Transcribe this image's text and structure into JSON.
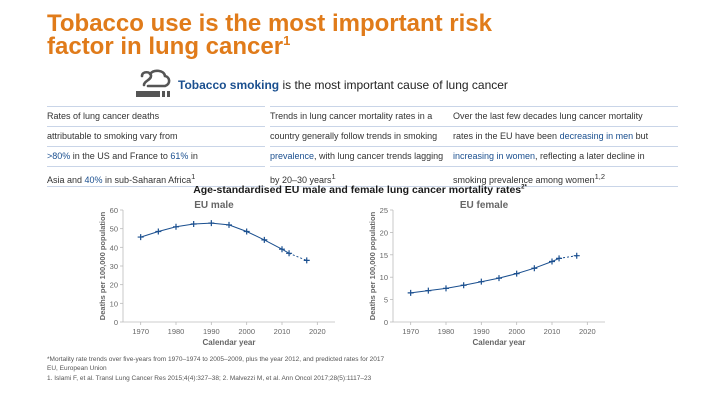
{
  "title": {
    "line1": "Tobacco use is the most important risk",
    "line2": "factor in lung cancer",
    "sup": "1"
  },
  "subtitle": {
    "highlight": "Tobacco smoking",
    "rest": " is the most important cause of lung cancer"
  },
  "columns": [
    {
      "rows": [
        [
          {
            "t": "Rates of lung cancer deaths"
          }
        ],
        [
          {
            "t": "attributable to smoking vary from"
          }
        ],
        [
          {
            "t": ">80%",
            "h": true
          },
          {
            "t": " in the US and France to "
          },
          {
            "t": "61%",
            "h": true
          },
          {
            "t": " in"
          }
        ],
        [
          {
            "t": "Asia and "
          },
          {
            "t": "40%",
            "h": true
          },
          {
            "t": " in sub-Saharan Africa"
          },
          {
            "t": "1",
            "s": true
          }
        ]
      ]
    },
    {
      "rows": [
        [
          {
            "t": "Trends in lung cancer mortality rates in a"
          }
        ],
        [
          {
            "t": "country generally follow trends in smoking"
          }
        ],
        [
          {
            "t": "prevalence",
            "h": true
          },
          {
            "t": ", with lung cancer trends lagging"
          }
        ],
        [
          {
            "t": "by 20–30 years"
          },
          {
            "t": "1",
            "s": true
          }
        ]
      ]
    },
    {
      "rows": [
        [
          {
            "t": "Over the last few decades lung cancer mortality"
          }
        ],
        [
          {
            "t": "rates in the EU have been "
          },
          {
            "t": "decreasing in men",
            "h": true
          },
          {
            "t": " but"
          }
        ],
        [
          {
            "t": "increasing in women",
            "h": true
          },
          {
            "t": ", reflecting a later decline in"
          }
        ],
        [
          {
            "t": "smoking prevalence among women"
          },
          {
            "t": "1,2",
            "s": true
          }
        ]
      ]
    }
  ],
  "chart_heading": {
    "text": "Age-standardised EU male and female lung cancer mortality rates",
    "sup": "2*"
  },
  "chart_data": [
    {
      "type": "line",
      "title": "EU male",
      "xlabel": "Calendar year",
      "ylabel": "Deaths per 100,000 population",
      "xlim": [
        1965,
        2025
      ],
      "ylim": [
        0,
        60
      ],
      "xticks": [
        1970,
        1980,
        1990,
        2000,
        2010,
        2020
      ],
      "yticks": [
        0,
        10,
        20,
        30,
        40,
        50,
        60
      ],
      "x": [
        1970,
        1975,
        1980,
        1985,
        1990,
        1995,
        2000,
        2005,
        2010,
        2012,
        2017
      ],
      "y": [
        45.5,
        48.5,
        51,
        52.5,
        53,
        52,
        48.5,
        44,
        39,
        36.8,
        33
      ],
      "predicted_from": 2017,
      "color": "#1a4f8f"
    },
    {
      "type": "line",
      "title": "EU female",
      "xlabel": "Calendar year",
      "ylabel": "Deaths per 100,000 population",
      "xlim": [
        1965,
        2025
      ],
      "ylim": [
        0,
        25
      ],
      "xticks": [
        1970,
        1980,
        1990,
        2000,
        2010,
        2020
      ],
      "yticks": [
        0,
        5,
        10,
        15,
        20,
        25
      ],
      "x": [
        1970,
        1975,
        1980,
        1985,
        1990,
        1995,
        2000,
        2005,
        2010,
        2012,
        2017
      ],
      "y": [
        6.5,
        7,
        7.5,
        8.2,
        9,
        9.8,
        10.8,
        12,
        13.5,
        14.2,
        14.8
      ],
      "predicted_from": 2017,
      "color": "#1a4f8f"
    }
  ],
  "footnotes": [
    {
      "sup": "",
      "text": "*Mortality rate trends over five-years from 1970–1974 to 2005–2009, plus the year 2012, and predicted rates for 2017"
    },
    {
      "sup": "",
      "text": "EU, European Union"
    },
    {
      "sup": "",
      "text": "1. Islami F, et al. Transl Lung Cancer Res 2015;4(4):327–38; 2. Malvezzi M, et al. Ann Oncol 2017;28(5):1117–23"
    }
  ],
  "colors": {
    "accent": "#e07b1a",
    "brand": "#1a4f8f",
    "axis": "#bbbbbb"
  }
}
